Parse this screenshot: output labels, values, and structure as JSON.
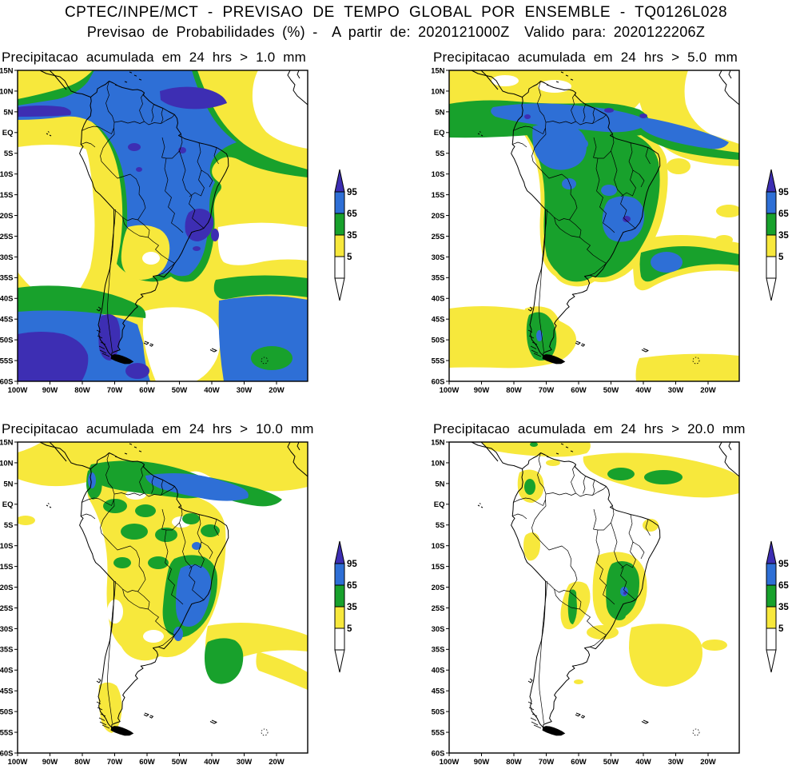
{
  "header": {
    "line1": "CPTEC/INPE/MCT - PREVISAO DE TEMPO GLOBAL POR ENSEMBLE - TQ0126L028",
    "line2": "Previsao de Probabilidades (%) -  A partir de: 2020121000Z  Valido para: 2020122206Z"
  },
  "panels": [
    {
      "title": "Precipitacao acumulada em 24 hrs > 1.0 mm",
      "threshold_mm": 1.0
    },
    {
      "title": "Precipitacao acumulada em 24 hrs > 5.0 mm",
      "threshold_mm": 5.0
    },
    {
      "title": "Precipitacao acumulada em 24 hrs > 10.0 mm",
      "threshold_mm": 10.0
    },
    {
      "title": "Precipitacao acumulada em 24 hrs > 20.0 mm",
      "threshold_mm": 20.0
    }
  ],
  "axes": {
    "lat": [
      "15N",
      "10N",
      "5N",
      "EQ",
      "5S",
      "10S",
      "15S",
      "20S",
      "25S",
      "30S",
      "35S",
      "40S",
      "45S",
      "50S",
      "55S",
      "60S"
    ],
    "lon": [
      "100W",
      "90W",
      "80W",
      "70W",
      "60W",
      "50W",
      "40W",
      "30W",
      "20W"
    ]
  },
  "legend": {
    "labels": [
      "95",
      "65",
      "35",
      "5"
    ],
    "unit": "%",
    "colors": {
      "above_95": "#3D2EB3",
      "from_65_to_95": "#2E6FD6",
      "from_35_to_65": "#18A12C",
      "from_5_to_35": "#F7E83C",
      "below_5": "#FFFFFF"
    }
  },
  "chart_data": {
    "type": "heatmap",
    "subtype": "probability-contour-maps",
    "title": "CPTEC/INPE/MCT - PREVISAO DE TEMPO GLOBAL POR ENSEMBLE - TQ0126L028",
    "subtitle": "Previsao de Probabilidades (%) - A partir de: 2020121000Z Valido para: 2020122206Z",
    "model": "TQ0126L028",
    "init_time": "2020121000Z",
    "valid_time": "2020122206Z",
    "variable": "Probability of 24-h accumulated precipitation exceeding threshold",
    "unit": "%",
    "levels_percent": [
      5,
      35,
      65,
      95
    ],
    "level_colors": [
      "#FFFFFF",
      "#F7E83C",
      "#18A12C",
      "#2E6FD6",
      "#3D2EB3"
    ],
    "extent": {
      "lon_ticks": [
        "100W",
        "90W",
        "80W",
        "70W",
        "60W",
        "50W",
        "40W",
        "30W",
        "20W"
      ],
      "lat_ticks": [
        "15N",
        "10N",
        "5N",
        "EQ",
        "5S",
        "10S",
        "15S",
        "20S",
        "25S",
        "30S",
        "35S",
        "40S",
        "45S",
        "50S",
        "55S",
        "60S"
      ]
    },
    "panels": [
      {
        "threshold_mm": 1.0,
        "summary": "Probabilities above 65-95% cover most of tropical South America, the Amazon basin, southeast Brazil and the far-southern oceans; >95% cores near 10N, over southeast Brazil and southern Chile; below 5% over the southeast Pacific and central South Atlantic."
      },
      {
        "threshold_mm": 5.0,
        "summary": "65-95% band along 5-10N across the Atlantic and over central/southeast Brazil; 35-65% over much of Amazonia and Tierra del Fuego; 5-35% over surrounding oceans; large <5% areas in the southeast Pacific and mid South Atlantic."
      },
      {
        "threshold_mm": 10.0,
        "summary": "Widespread 5-35%; 35-65% patches over Amazonia, central Brazil and the northern coast; 65-95% over southeast Brazil (15S-25S) and along 5N in the Atlantic; oceans to the south mostly below 5%."
      },
      {
        "threshold_mm": 20.0,
        "summary": "Mostly below 5%; 5-35% along 5-10N in the Atlantic (with 35-65% ovals near 45W and 33W), near Colombia, and over southeast Brazil and the adjacent South Atlantic; isolated 65-95% point near 21S 46W."
      }
    ]
  }
}
